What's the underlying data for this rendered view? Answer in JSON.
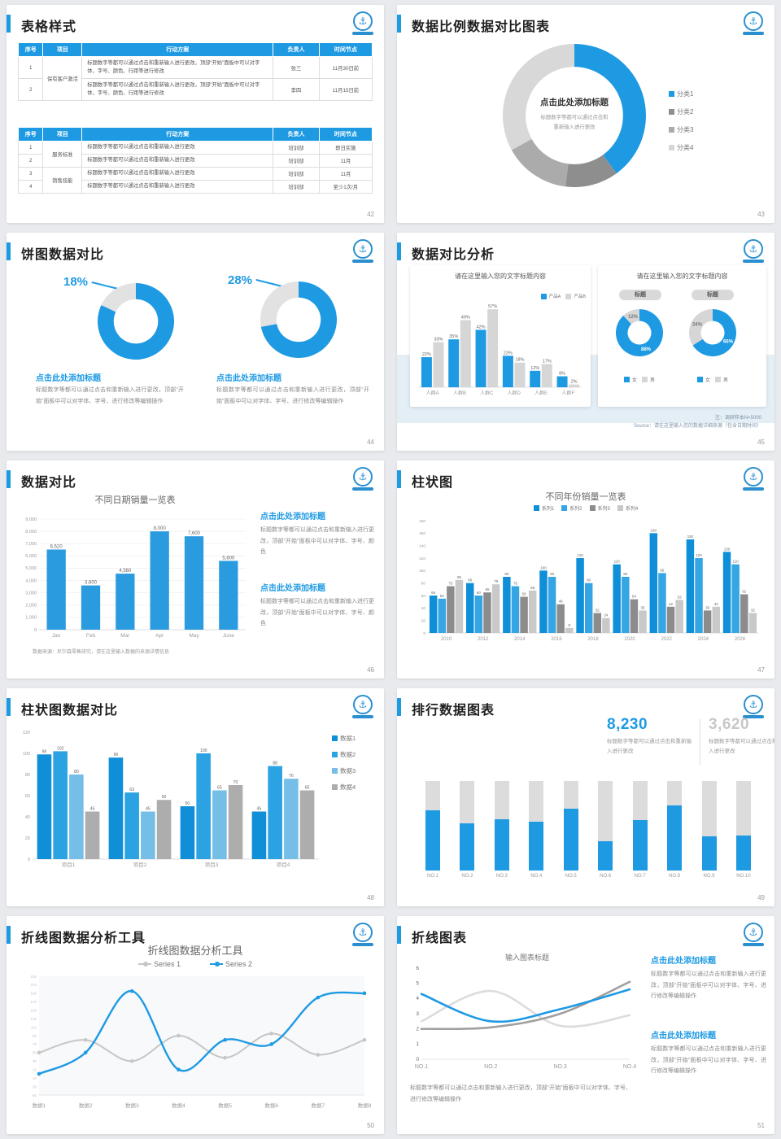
{
  "app": {
    "background": "#e8eaed",
    "accent": "#1E9AE3"
  },
  "logo": {
    "name": "anchor-emblem",
    "symbol": "⚓"
  },
  "slides": {
    "s42": {
      "title": "表格样式",
      "page": "42",
      "table_headers": [
        "序号",
        "项目",
        "行动方案",
        "负责人",
        "时间节点"
      ],
      "table1": {
        "groups": [
          {
            "project": "保有客户激活",
            "rows": [
              {
                "no": "1",
                "plan": "标题数字等都可以通过点击和重新输入进行更改，顶部“开始”面板中可以对字体、字号、颜色、行距等进行修改",
                "owner": "张三",
                "time": "11月30日前"
              },
              {
                "no": "2",
                "plan": "标题数字等都可以通过点击和重新输入进行更改，顶部“开始”面板中可以对字体、字号、颜色、行距等进行修改",
                "owner": "李四",
                "time": "11月15日前"
              }
            ]
          }
        ]
      },
      "table2": {
        "groups": [
          {
            "project": "服务标准",
            "rows": [
              {
                "no": "1",
                "plan": "标题数字等都可以通过点击和重新输入进行更改",
                "owner": "培训部",
                "time": "即日实施"
              },
              {
                "no": "2",
                "plan": "标题数字等都可以通过点击和重新输入进行更改",
                "owner": "培训部",
                "time": "11月"
              }
            ]
          },
          {
            "project": "销售技能",
            "rows": [
              {
                "no": "3",
                "plan": "标题数字等都可以通过点击和重新输入进行更改",
                "owner": "培训部",
                "time": "11月"
              },
              {
                "no": "4",
                "plan": "标题数字等都可以通过点击和重新输入进行更改",
                "owner": "培训部",
                "time": "至少1次/月"
              }
            ]
          }
        ]
      }
    },
    "s43": {
      "title": "数据比例数据对比图表",
      "page": "43",
      "center_title": "点击此处添加标题",
      "center_sub1": "标题数字等都可以通过点击和",
      "center_sub2": "重新输入进行更改"
    },
    "s44": {
      "title": "饼图数据对比",
      "page": "44",
      "left": {
        "pct": "18%",
        "heading": "点击此处添加标题",
        "body": "标题数字等都可以通过点击和重新输入进行更改，顶部“开始”面板中可以对字体、字号、进行修改等编辑操作"
      },
      "right": {
        "pct": "28%",
        "heading": "点击此处添加标题",
        "body": "标题数字等都可以通过点击和重新输入进行更改，顶部“开始”面板中可以对字体、字号、进行修改等编辑操作"
      }
    },
    "s45": {
      "title": "数据对比分析",
      "page": "45",
      "card1_title": "请在这里输入您的文字标题内容",
      "card2_title": "请在这里输入您的文字标题内容",
      "badge": "标题",
      "note1": "注：调研样本N=5000",
      "note2": "Source：请在这里输入您的数据详细来源（包含日期时间）"
    },
    "s46": {
      "title": "数据对比",
      "page": "46",
      "source": "数据来源：尼尔森零售研究，请在这里输入数据的来源详情信息",
      "block_heading": "点击此处添加标题",
      "block_body": "标题数字等都可以通过点击和重新输入进行更改，顶部“开始”面板中可以对字体、字号、颜色"
    },
    "s47": {
      "title": "柱状图",
      "page": "47"
    },
    "s48": {
      "title": "柱状图数据对比",
      "page": "48"
    },
    "s49": {
      "title": "排行数据图表",
      "page": "49",
      "stat1": {
        "value": "8,230",
        "caption": "标题数字等都可以通过点击和重新输入进行更改"
      },
      "stat2": {
        "value": "3,620",
        "caption": "标题数字等都可以通过点击和重新输入进行更改"
      }
    },
    "s50": {
      "title": "折线图数据分析工具",
      "page": "50"
    },
    "s51": {
      "title": "折线图表",
      "page": "51",
      "caption": "标题数字等都可以通过点击和重新输入进行更改，顶部“开始”面板中可以对字体、字号、进行修改等编辑操作",
      "block_heading": "点击此处添加标题",
      "block_body": "标题数字等都可以通过点击和重新输入进行更改，顶部“开始”面板中可以对字体、字号、进行修改等编辑操作"
    }
  },
  "chart_data": [
    {
      "id": "donut43",
      "type": "pie",
      "donut": true,
      "labels": [
        "分类1",
        "分类2",
        "分类3",
        "分类4"
      ],
      "values": [
        40,
        12,
        15,
        33
      ],
      "colors": [
        "#1E9AE3",
        "#8E8E8E",
        "#ABABAB",
        "#D8D8D8"
      ],
      "legend_position": "right"
    },
    {
      "id": "donut44a",
      "type": "pie",
      "donut": true,
      "label": "18%",
      "values": [
        82,
        18
      ],
      "colors": [
        "#1E9AE3",
        "#E2E2E2"
      ]
    },
    {
      "id": "donut44b",
      "type": "pie",
      "donut": true,
      "label": "28%",
      "values": [
        72,
        28
      ],
      "colors": [
        "#1E9AE3",
        "#E2E2E2"
      ]
    },
    {
      "id": "bars45",
      "type": "bar",
      "categories": [
        "人群A",
        "人群B",
        "人群C",
        "人群D",
        "人群E",
        "人群F"
      ],
      "series": [
        {
          "name": "产品A",
          "color": "#1E9AE3",
          "values": [
            22,
            35,
            42,
            23,
            12,
            8
          ]
        },
        {
          "name": "产品B",
          "color": "#D6D6D6",
          "values": [
            33,
            49,
            57,
            18,
            17,
            2
          ]
        }
      ],
      "unit": "%",
      "ylim": [
        0,
        63
      ],
      "data_labels": true,
      "legend_position": "top-right",
      "grid": false
    },
    {
      "id": "donut45a",
      "type": "pie",
      "donut": true,
      "labels": [
        "女",
        "男"
      ],
      "values": [
        88,
        12
      ],
      "colors": [
        "#1E9AE3",
        "#D6D6D6"
      ],
      "data_labels": [
        "88%",
        "12%"
      ],
      "label_colors": [
        "#fff",
        "#777"
      ]
    },
    {
      "id": "donut45b",
      "type": "pie",
      "donut": true,
      "labels": [
        "女",
        "男"
      ],
      "values": [
        66,
        34
      ],
      "colors": [
        "#1E9AE3",
        "#D6D6D6"
      ],
      "data_labels": [
        "66%",
        "34%"
      ],
      "label_colors": [
        "#fff",
        "#777"
      ]
    },
    {
      "id": "bars46",
      "type": "bar",
      "title": "不同日期销量一览表",
      "categories": [
        "Jan",
        "Feb",
        "Mar",
        "Apr",
        "May",
        "June"
      ],
      "values": [
        6520,
        3600,
        4560,
        8000,
        7600,
        5600
      ],
      "color": "#2B9BE0",
      "ylim": [
        0,
        9000
      ],
      "ytick_step": 1000,
      "grid": true,
      "data_labels": true,
      "comma": true
    },
    {
      "id": "bars47",
      "type": "bar",
      "title": "不同年份销量一览表",
      "categories": [
        "2010",
        "2012",
        "2014",
        "2016",
        "2018",
        "2020",
        "2022",
        "2024",
        "2026"
      ],
      "series": [
        {
          "name": "系列1",
          "color": "#0E8FD8",
          "values": [
            60,
            80,
            90,
            100,
            120,
            110,
            160,
            150,
            130
          ]
        },
        {
          "name": "系列2",
          "color": "#35A5E4",
          "values": [
            55,
            60,
            75,
            90,
            80,
            90,
            96,
            120,
            110
          ]
        },
        {
          "name": "系列3",
          "color": "#8C8C8C",
          "values": [
            75,
            65,
            58,
            46,
            32,
            54,
            42,
            36,
            62
          ]
        },
        {
          "name": "系列4",
          "color": "#C9C9C9",
          "values": [
            85,
            78,
            68,
            8,
            24,
            36,
            53,
            42,
            32
          ]
        }
      ],
      "ylim": [
        0,
        180
      ],
      "ytick_step": 20,
      "data_labels": true,
      "legend_position": "top",
      "grid": false
    },
    {
      "id": "bars48",
      "type": "bar",
      "categories": [
        "项目1",
        "项目2",
        "项目3",
        "项目4"
      ],
      "series": [
        {
          "name": "数据1",
          "color": "#0E8FD8",
          "values": [
            99,
            96,
            50,
            45
          ]
        },
        {
          "name": "数据2",
          "color": "#2BA2E2",
          "values": [
            102,
            63,
            100,
            88
          ]
        },
        {
          "name": "数据3",
          "color": "#74BEE8",
          "values": [
            80,
            45,
            65,
            76
          ]
        },
        {
          "name": "数据4",
          "color": "#ADADAD",
          "values": [
            45,
            56,
            70,
            65
          ]
        }
      ],
      "ylim": [
        0,
        120
      ],
      "ytick_step": 20,
      "data_labels": true,
      "legend_position": "right",
      "grid": false
    },
    {
      "id": "rank49",
      "type": "bar",
      "subtype": "fill",
      "categories": [
        "NO.1",
        "NO.2",
        "NO.3",
        "NO.4",
        "NO.5",
        "NO.6",
        "NO.7",
        "NO.8",
        "NO.9",
        "NO.10"
      ],
      "fill_pct": [
        67,
        53,
        57,
        55,
        69,
        33,
        56,
        73,
        38,
        39
      ],
      "fill_color": "#1E9AE3",
      "track_color": "#DCDCDC"
    },
    {
      "id": "lines50",
      "type": "line",
      "title": "折线图数据分析工具",
      "categories": [
        "数据1",
        "数据2",
        "数据3",
        "数据4",
        "数据5",
        "数据6",
        "数据7",
        "数据8"
      ],
      "series": [
        {
          "name": "Series 1",
          "color": "#C6C6C6",
          "values": [
            50,
            80,
            30,
            90,
            38,
            95,
            45,
            80
          ]
        },
        {
          "name": "Series 2",
          "color": "#1E9AE3",
          "values": [
            0,
            50,
            195,
            10,
            80,
            70,
            180,
            190
          ]
        }
      ],
      "ylim": [
        -50,
        230
      ],
      "ytick_step": 20,
      "dots": true,
      "legend_position": "top"
    },
    {
      "id": "lines51",
      "type": "line",
      "title": "输入图表标题",
      "categories": [
        "NO.1",
        "NO.2",
        "NO.3",
        "NO.4"
      ],
      "series": [
        {
          "color": "#DCDCDC",
          "values": [
            2.5,
            4.5,
            2.2,
            2.9
          ]
        },
        {
          "color": "#A0A0A0",
          "values": [
            2.0,
            2.1,
            3.0,
            5.1
          ]
        },
        {
          "color": "#1E9AE3",
          "values": [
            4.3,
            2.5,
            3.3,
            4.6
          ]
        }
      ],
      "ylim": [
        0,
        6
      ],
      "ytick_step": 1,
      "dots": false
    }
  ]
}
